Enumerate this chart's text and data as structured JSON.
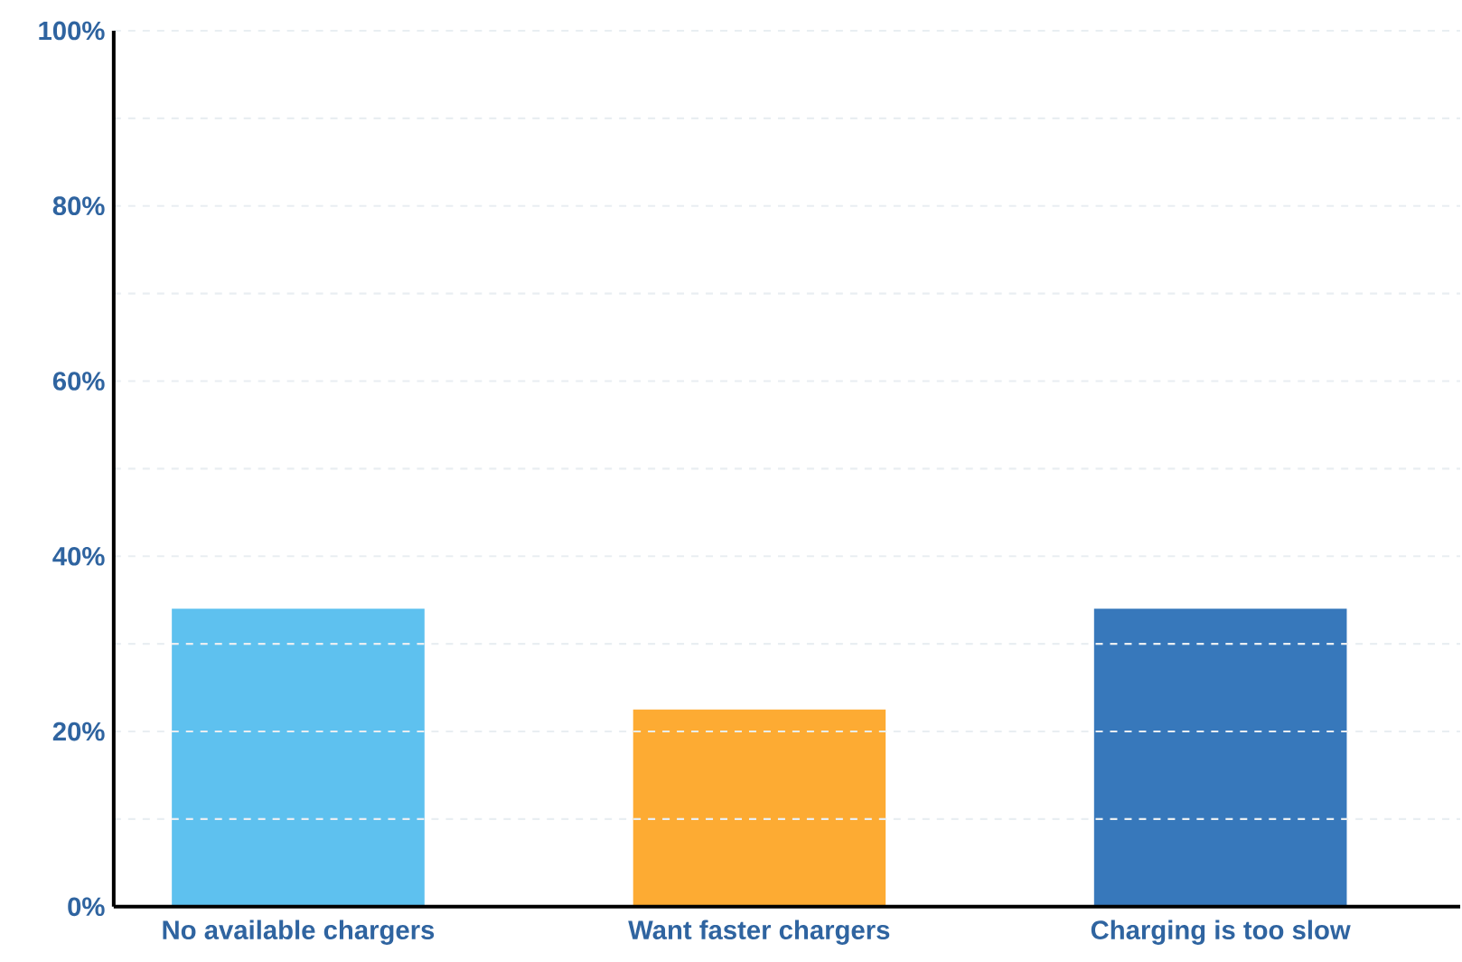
{
  "chart_data": {
    "type": "bar",
    "categories": [
      "No available chargers",
      "Want faster chargers",
      "Charging is too slow"
    ],
    "values": [
      34,
      22.5,
      34
    ],
    "colors": [
      "#5ec1ef",
      "#fdab33",
      "#3778bb"
    ],
    "ylim": [
      0,
      100
    ],
    "yticks": [
      {
        "value": 0,
        "label": "0%"
      },
      {
        "value": 10,
        "label": null
      },
      {
        "value": 20,
        "label": "20%"
      },
      {
        "value": 30,
        "label": null
      },
      {
        "value": 40,
        "label": "40%"
      },
      {
        "value": 50,
        "label": null
      },
      {
        "value": 60,
        "label": "60%"
      },
      {
        "value": 70,
        "label": null
      },
      {
        "value": 80,
        "label": "80%"
      },
      {
        "value": 90,
        "label": null
      },
      {
        "value": 100,
        "label": "100%"
      }
    ],
    "grid": "y"
  }
}
